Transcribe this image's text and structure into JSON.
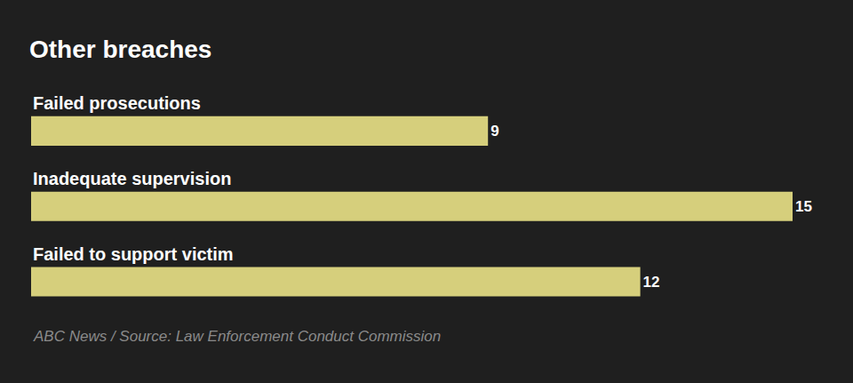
{
  "chart_data": {
    "type": "bar",
    "orientation": "horizontal",
    "title": "Other breaches",
    "categories": [
      "Failed prosecutions",
      "Inadequate supervision",
      "Failed to support victim"
    ],
    "values": [
      9,
      15,
      12
    ],
    "color": "#d6cf7c",
    "xlim": [
      0,
      15
    ],
    "grid": false,
    "data_labels": true,
    "tick_labels": false,
    "annotations": [
      "ABC News / Source: Law Enforcement Conduct Commission"
    ]
  }
}
